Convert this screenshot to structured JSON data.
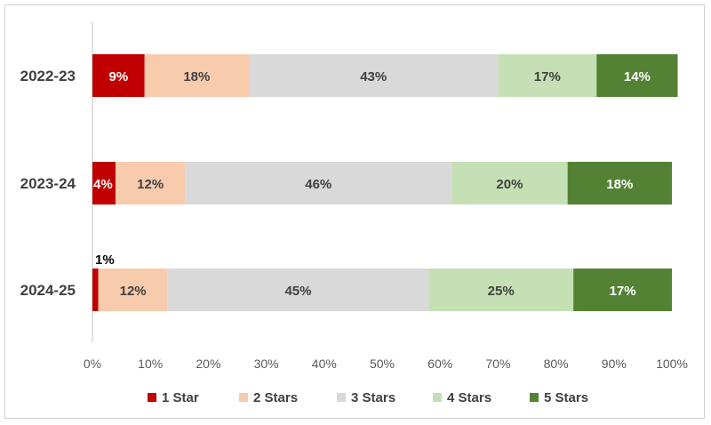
{
  "chart_data": {
    "type": "bar",
    "orientation": "horizontal",
    "stacked": "percent",
    "categories": [
      "2022-23",
      "2023-24",
      "2024-25"
    ],
    "series": [
      {
        "name": "1 Star",
        "color": "#c00000",
        "values": [
          9,
          4,
          1
        ],
        "labels": [
          "9%",
          "4%",
          "1%"
        ]
      },
      {
        "name": "2 Stars",
        "color": "#f8cbad",
        "values": [
          18,
          12,
          12
        ],
        "labels": [
          "18%",
          "12%",
          "12%"
        ]
      },
      {
        "name": "3 Stars",
        "color": "#d9d9d9",
        "values": [
          43,
          46,
          45
        ],
        "labels": [
          "43%",
          "46%",
          "45%"
        ]
      },
      {
        "name": "4 Stars",
        "color": "#c5e0b4",
        "values": [
          17,
          20,
          25
        ],
        "labels": [
          "17%",
          "20%",
          "25%"
        ]
      },
      {
        "name": "5 Stars",
        "color": "#548235",
        "values": [
          14,
          18,
          17
        ],
        "labels": [
          "14%",
          "18%",
          "17%"
        ]
      }
    ],
    "xlim": [
      0,
      100
    ],
    "xticks": [
      "0%",
      "10%",
      "20%",
      "30%",
      "40%",
      "50%",
      "60%",
      "70%",
      "80%",
      "90%",
      "100%"
    ],
    "title": "",
    "xlabel": "",
    "ylabel": "",
    "grid": false,
    "legend": "bottom"
  }
}
